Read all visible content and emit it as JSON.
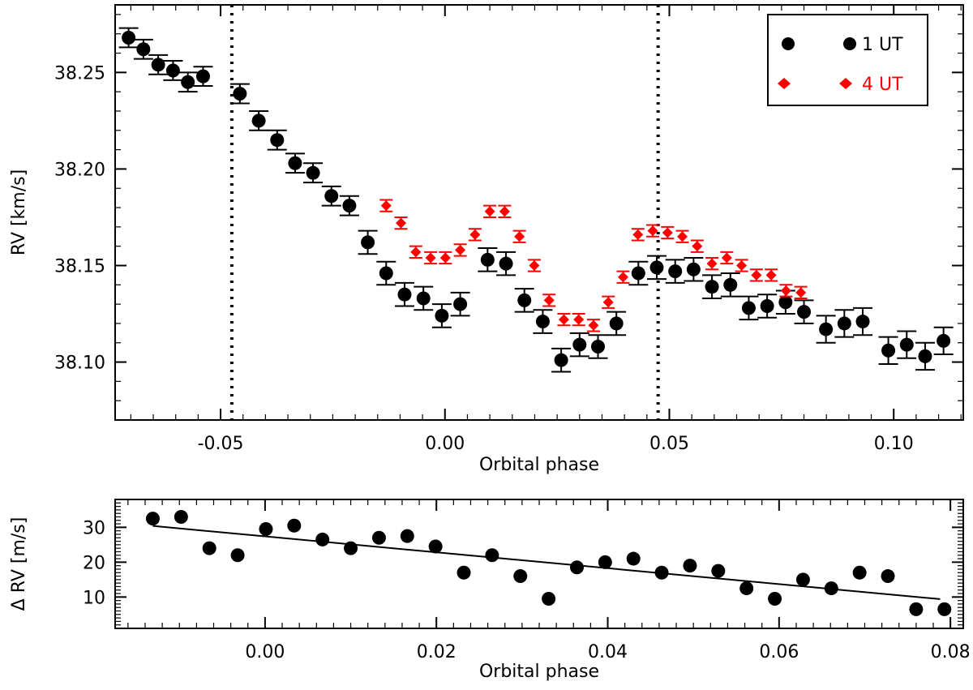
{
  "chart_data": [
    {
      "type": "scatter",
      "panel": "top",
      "xlabel": "Orbital phase",
      "ylabel": "RV [km/s]",
      "xlim": [
        -0.0735,
        0.1155
      ],
      "ylim": [
        38.07,
        38.285
      ],
      "xticks": [
        -0.05,
        0.0,
        0.05,
        0.1
      ],
      "xtick_labels": [
        "-0.05",
        "0.00",
        "0.05",
        "0.10"
      ],
      "yticks": [
        38.1,
        38.15,
        38.2,
        38.25
      ],
      "ytick_labels": [
        "38.10",
        "38.15",
        "38.20",
        "38.25"
      ],
      "vlines": [
        -0.0475,
        0.0475
      ],
      "legend": {
        "placement": "top-right",
        "entries": [
          {
            "label": "1 UT",
            "color": "#000000",
            "marker": "circle"
          },
          {
            "label": "4 UT",
            "color": "#ff0000",
            "marker": "diamond"
          }
        ]
      },
      "series": [
        {
          "name": "1 UT",
          "color": "#000000",
          "marker": "circle",
          "points": [
            {
              "x": -0.0705,
              "y": 38.268,
              "err": 0.005
            },
            {
              "x": -0.0672,
              "y": 38.262,
              "err": 0.005
            },
            {
              "x": -0.0639,
              "y": 38.254,
              "err": 0.005
            },
            {
              "x": -0.0606,
              "y": 38.251,
              "err": 0.005
            },
            {
              "x": -0.0573,
              "y": 38.245,
              "err": 0.005
            },
            {
              "x": -0.0539,
              "y": 38.248,
              "err": 0.005
            },
            {
              "x": -0.0457,
              "y": 38.239,
              "err": 0.005
            },
            {
              "x": -0.0415,
              "y": 38.225,
              "err": 0.005
            },
            {
              "x": -0.0374,
              "y": 38.215,
              "err": 0.005
            },
            {
              "x": -0.0334,
              "y": 38.203,
              "err": 0.005
            },
            {
              "x": -0.0294,
              "y": 38.198,
              "err": 0.005
            },
            {
              "x": -0.0253,
              "y": 38.186,
              "err": 0.005
            },
            {
              "x": -0.0213,
              "y": 38.181,
              "err": 0.005
            },
            {
              "x": -0.0172,
              "y": 38.162,
              "err": 0.006
            },
            {
              "x": -0.0131,
              "y": 38.146,
              "err": 0.006
            },
            {
              "x": -0.009,
              "y": 38.135,
              "err": 0.006
            },
            {
              "x": -0.0048,
              "y": 38.133,
              "err": 0.006
            },
            {
              "x": -0.0007,
              "y": 38.124,
              "err": 0.006
            },
            {
              "x": 0.0034,
              "y": 38.13,
              "err": 0.006
            },
            {
              "x": 0.0095,
              "y": 38.153,
              "err": 0.006
            },
            {
              "x": 0.0136,
              "y": 38.151,
              "err": 0.006
            },
            {
              "x": 0.0177,
              "y": 38.132,
              "err": 0.006
            },
            {
              "x": 0.0218,
              "y": 38.121,
              "err": 0.006
            },
            {
              "x": 0.0259,
              "y": 38.101,
              "err": 0.006
            },
            {
              "x": 0.03,
              "y": 38.109,
              "err": 0.006
            },
            {
              "x": 0.0341,
              "y": 38.108,
              "err": 0.006
            },
            {
              "x": 0.0382,
              "y": 38.12,
              "err": 0.006
            },
            {
              "x": 0.0431,
              "y": 38.146,
              "err": 0.006
            },
            {
              "x": 0.0472,
              "y": 38.149,
              "err": 0.006
            },
            {
              "x": 0.0513,
              "y": 38.147,
              "err": 0.006
            },
            {
              "x": 0.0554,
              "y": 38.148,
              "err": 0.006
            },
            {
              "x": 0.0595,
              "y": 38.139,
              "err": 0.006
            },
            {
              "x": 0.0636,
              "y": 38.14,
              "err": 0.006
            },
            {
              "x": 0.0677,
              "y": 38.128,
              "err": 0.006
            },
            {
              "x": 0.0718,
              "y": 38.129,
              "err": 0.006
            },
            {
              "x": 0.0759,
              "y": 38.131,
              "err": 0.006
            },
            {
              "x": 0.08,
              "y": 38.126,
              "err": 0.006
            },
            {
              "x": 0.0849,
              "y": 38.117,
              "err": 0.007
            },
            {
              "x": 0.089,
              "y": 38.12,
              "err": 0.007
            },
            {
              "x": 0.0931,
              "y": 38.121,
              "err": 0.007
            },
            {
              "x": 0.0988,
              "y": 38.106,
              "err": 0.007
            },
            {
              "x": 0.1029,
              "y": 38.109,
              "err": 0.007
            },
            {
              "x": 0.107,
              "y": 38.103,
              "err": 0.007
            },
            {
              "x": 0.1111,
              "y": 38.111,
              "err": 0.007
            }
          ]
        },
        {
          "name": "4 UT",
          "color": "#ff0000",
          "marker": "diamond",
          "points": [
            {
              "x": -0.0131,
              "y": 38.181,
              "err": 0.003
            },
            {
              "x": -0.0098,
              "y": 38.172,
              "err": 0.003
            },
            {
              "x": -0.0065,
              "y": 38.157,
              "err": 0.003
            },
            {
              "x": -0.0032,
              "y": 38.154,
              "err": 0.003
            },
            {
              "x": 0.0001,
              "y": 38.154,
              "err": 0.003
            },
            {
              "x": 0.0034,
              "y": 38.158,
              "err": 0.003
            },
            {
              "x": 0.0067,
              "y": 38.166,
              "err": 0.003
            },
            {
              "x": 0.01,
              "y": 38.178,
              "err": 0.003
            },
            {
              "x": 0.0133,
              "y": 38.178,
              "err": 0.003
            },
            {
              "x": 0.0166,
              "y": 38.165,
              "err": 0.003
            },
            {
              "x": 0.0199,
              "y": 38.15,
              "err": 0.003
            },
            {
              "x": 0.0232,
              "y": 38.132,
              "err": 0.003
            },
            {
              "x": 0.0265,
              "y": 38.122,
              "err": 0.003
            },
            {
              "x": 0.0298,
              "y": 38.122,
              "err": 0.003
            },
            {
              "x": 0.0331,
              "y": 38.119,
              "err": 0.003
            },
            {
              "x": 0.0364,
              "y": 38.131,
              "err": 0.003
            },
            {
              "x": 0.0397,
              "y": 38.144,
              "err": 0.003
            },
            {
              "x": 0.043,
              "y": 38.166,
              "err": 0.003
            },
            {
              "x": 0.0463,
              "y": 38.168,
              "err": 0.003
            },
            {
              "x": 0.0496,
              "y": 38.167,
              "err": 0.003
            },
            {
              "x": 0.0529,
              "y": 38.165,
              "err": 0.003
            },
            {
              "x": 0.0562,
              "y": 38.16,
              "err": 0.003
            },
            {
              "x": 0.0595,
              "y": 38.151,
              "err": 0.003
            },
            {
              "x": 0.0628,
              "y": 38.154,
              "err": 0.003
            },
            {
              "x": 0.0661,
              "y": 38.15,
              "err": 0.003
            },
            {
              "x": 0.0694,
              "y": 38.145,
              "err": 0.003
            },
            {
              "x": 0.0727,
              "y": 38.145,
              "err": 0.003
            },
            {
              "x": 0.076,
              "y": 38.137,
              "err": 0.003
            },
            {
              "x": 0.0793,
              "y": 38.136,
              "err": 0.003
            }
          ]
        }
      ]
    },
    {
      "type": "scatter",
      "panel": "bottom",
      "xlabel": "Orbital phase",
      "ylabel": "Δ RV [m/s]",
      "xlim": [
        -0.0175,
        0.0815
      ],
      "ylim": [
        1,
        38
      ],
      "xticks": [
        0.0,
        0.02,
        0.04,
        0.06,
        0.08
      ],
      "xtick_labels": [
        "0.00",
        "0.02",
        "0.04",
        "0.06",
        "0.08"
      ],
      "yticks": [
        10,
        20,
        30
      ],
      "ytick_labels": [
        "10",
        "20",
        "30"
      ],
      "fit_line": {
        "x": [
          -0.0131,
          0.0788
        ],
        "y": [
          30.4,
          9.4
        ]
      },
      "series": [
        {
          "name": "Δ RV",
          "color": "#000000",
          "marker": "circle",
          "points": [
            {
              "x": -0.0131,
              "y": 32.5
            },
            {
              "x": -0.0098,
              "y": 33.0
            },
            {
              "x": -0.0065,
              "y": 24.0
            },
            {
              "x": -0.0032,
              "y": 22.0
            },
            {
              "x": 0.0001,
              "y": 29.5
            },
            {
              "x": 0.0034,
              "y": 30.5
            },
            {
              "x": 0.0067,
              "y": 26.5
            },
            {
              "x": 0.01,
              "y": 24.0
            },
            {
              "x": 0.0133,
              "y": 27.0
            },
            {
              "x": 0.0166,
              "y": 27.5
            },
            {
              "x": 0.0199,
              "y": 24.5
            },
            {
              "x": 0.0232,
              "y": 17.0
            },
            {
              "x": 0.0265,
              "y": 22.0
            },
            {
              "x": 0.0298,
              "y": 16.0
            },
            {
              "x": 0.0331,
              "y": 9.5
            },
            {
              "x": 0.0364,
              "y": 18.5
            },
            {
              "x": 0.0397,
              "y": 20.0
            },
            {
              "x": 0.043,
              "y": 21.0
            },
            {
              "x": 0.0463,
              "y": 17.0
            },
            {
              "x": 0.0496,
              "y": 19.0
            },
            {
              "x": 0.0529,
              "y": 17.5
            },
            {
              "x": 0.0562,
              "y": 12.5
            },
            {
              "x": 0.0595,
              "y": 9.5
            },
            {
              "x": 0.0628,
              "y": 15.0
            },
            {
              "x": 0.0661,
              "y": 12.5
            },
            {
              "x": 0.0694,
              "y": 17.0
            },
            {
              "x": 0.0727,
              "y": 16.0
            },
            {
              "x": 0.076,
              "y": 6.5
            },
            {
              "x": 0.0793,
              "y": 6.5
            }
          ]
        }
      ]
    }
  ]
}
